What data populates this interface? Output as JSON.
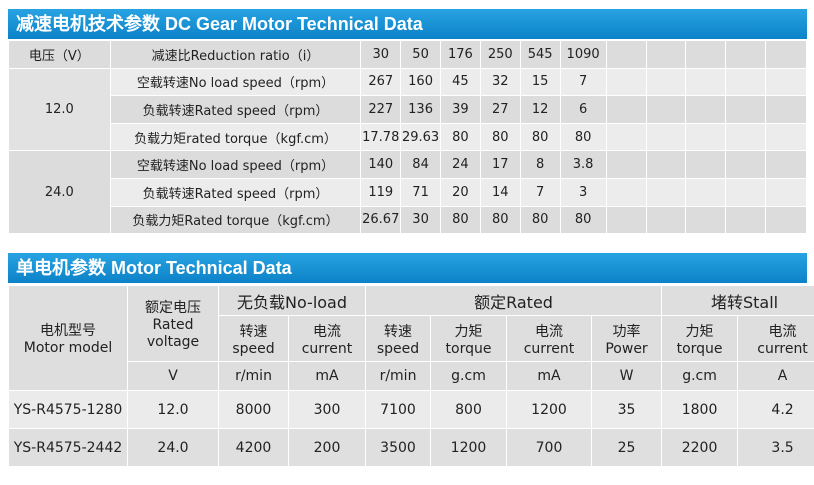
{
  "section1": {
    "title": "减速电机技术参数 DC Gear Motor Technical Data",
    "header_label": "电压（V）",
    "ratio_label": "减速比Reduction ratio（i）",
    "ratios": [
      "30",
      "50",
      "176",
      "250",
      "545",
      "1090"
    ],
    "groups": [
      {
        "voltage": "12.0",
        "rows": [
          {
            "label": "空载转速No load speed（rpm）",
            "values": [
              "267",
              "160",
              "45",
              "32",
              "15",
              "7"
            ]
          },
          {
            "label": "负载转速Rated speed（rpm）",
            "values": [
              "227",
              "136",
              "39",
              "27",
              "12",
              "6"
            ]
          },
          {
            "label": "负载力矩rated torque（kgf.cm）",
            "values": [
              "17.78",
              "29.63",
              "80",
              "80",
              "80",
              "80"
            ]
          }
        ]
      },
      {
        "voltage": "24.0",
        "rows": [
          {
            "label": "空载转速No load speed（rpm）",
            "values": [
              "140",
              "84",
              "24",
              "17",
              "8",
              "3.8"
            ]
          },
          {
            "label": "负载转速Rated speed（rpm）",
            "values": [
              "119",
              "71",
              "20",
              "14",
              "7",
              "3"
            ]
          },
          {
            "label": "负载力矩Rated torque（kgf.cm）",
            "values": [
              "26.67",
              "30",
              "80",
              "80",
              "80",
              "80"
            ]
          }
        ]
      }
    ]
  },
  "section2": {
    "title": "单电机参数 Motor Technical Data",
    "model_label_cn": "电机型号",
    "model_label_en": "Motor model",
    "voltage_label_cn": "额定电压",
    "voltage_label_en": "Rated voltage",
    "group_noload": "无负载No-load",
    "group_rated": "额定Rated",
    "group_stall": "堵转Stall",
    "sub": [
      {
        "cn": "转速",
        "en": "speed"
      },
      {
        "cn": "电流",
        "en": "current"
      },
      {
        "cn": "转速",
        "en": "speed"
      },
      {
        "cn": "力矩",
        "en": "torque"
      },
      {
        "cn": "电流",
        "en": "current"
      },
      {
        "cn": "功率",
        "en": "Power"
      },
      {
        "cn": "力矩",
        "en": "torque"
      },
      {
        "cn": "电流",
        "en": "current"
      }
    ],
    "units": [
      "V",
      "r/min",
      "mA",
      "r/min",
      "g.cm",
      "mA",
      "W",
      "g.cm",
      "A"
    ],
    "rows": [
      {
        "model": "YS-R4575-1280",
        "values": [
          "12.0",
          "8000",
          "300",
          "7100",
          "800",
          "1200",
          "35",
          "1800",
          "4.2"
        ]
      },
      {
        "model": "YS-R4575-2442",
        "values": [
          "24.0",
          "4200",
          "200",
          "3500",
          "1200",
          "700",
          "25",
          "2200",
          "3.5"
        ]
      }
    ]
  }
}
